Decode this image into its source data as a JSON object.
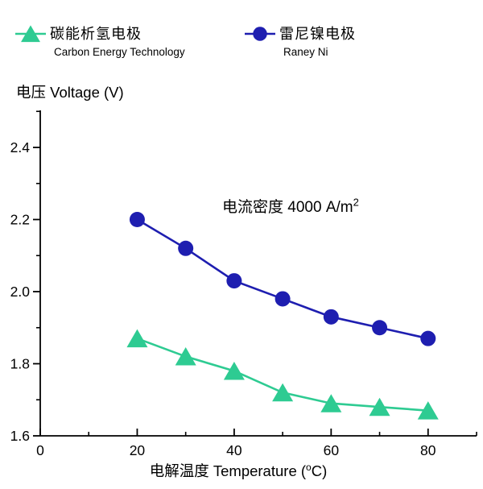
{
  "legend": {
    "items": [
      {
        "label_zh": "碳能析氢电极",
        "label_en": "Carbon Energy Technology",
        "marker": "triangle",
        "color": "#2ecb92"
      },
      {
        "label_zh": "雷尼镍电极",
        "label_en": "Raney Ni",
        "marker": "circle",
        "color": "#1e1eb0"
      }
    ]
  },
  "y_axis_title": "电压 Voltage (V)",
  "x_axis_title": {
    "prefix": "电解温度 Temperature (",
    "sup": "o",
    "suffix": "C)"
  },
  "annotation": {
    "prefix": "电流密度 4000 A/m",
    "sup": "2"
  },
  "colors": {
    "background": "#ffffff",
    "axis": "#000000",
    "text": "#000000",
    "series_green": "#2ecb92",
    "series_blue": "#1e1eb0"
  },
  "chart_data": {
    "type": "line",
    "title": "",
    "xlabel": "电解温度 Temperature (°C)",
    "ylabel": "电压 Voltage (V)",
    "annotation": "电流密度 4000 A/m²",
    "grid": false,
    "legend_position": "top",
    "xlim": [
      0,
      90
    ],
    "ylim": [
      1.6,
      2.5
    ],
    "x_major_ticks": [
      0,
      20,
      40,
      60,
      80
    ],
    "x_tick_labels": [
      "0",
      "20",
      "40",
      "60",
      "80"
    ],
    "x_minor_ticks": [
      10,
      30,
      50,
      70,
      90
    ],
    "y_major_ticks": [
      1.6,
      1.8,
      2.0,
      2.2,
      2.4
    ],
    "y_tick_labels": [
      "1.6",
      "1.8",
      "2.0",
      "2.2",
      "2.4"
    ],
    "y_minor_ticks": [
      1.7,
      1.9,
      2.1,
      2.3,
      2.5
    ],
    "x": [
      20,
      30,
      40,
      50,
      60,
      70,
      80
    ],
    "series": [
      {
        "name_zh": "碳能析氢电极",
        "name_en": "Carbon Energy Technology",
        "marker": "triangle",
        "color": "#2ecb92",
        "values": [
          1.87,
          1.82,
          1.78,
          1.72,
          1.69,
          1.68,
          1.67
        ]
      },
      {
        "name_zh": "雷尼镍电极",
        "name_en": "Raney Ni",
        "marker": "circle",
        "color": "#1e1eb0",
        "values": [
          2.2,
          2.12,
          2.03,
          1.98,
          1.93,
          1.9,
          1.87
        ]
      }
    ]
  }
}
